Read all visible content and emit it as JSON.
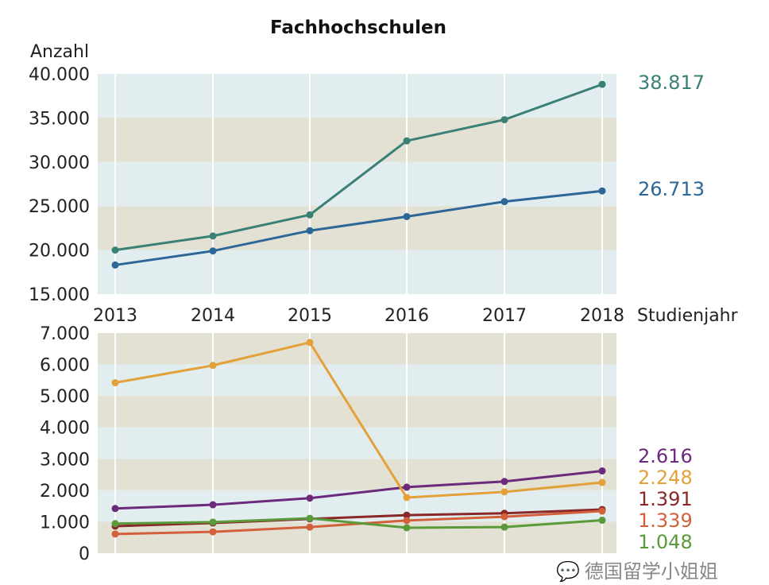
{
  "chart_data": [
    {
      "type": "line",
      "title": "Fachhochschulen",
      "ylabel": "Anzahl",
      "xlabel": "Studienjahr",
      "x": [
        "2013",
        "2014",
        "2015",
        "2016",
        "2017",
        "2018"
      ],
      "ylim": [
        15000,
        40000
      ],
      "yticks": [
        15000,
        20000,
        25000,
        30000,
        35000,
        40000
      ],
      "ytick_labels": [
        "15.000",
        "20.000",
        "25.000",
        "30.000",
        "35.000",
        "40.000"
      ],
      "background": "alternating bands",
      "series": [
        {
          "color": "#3a8074",
          "values": [
            20000,
            21600,
            24000,
            32400,
            34800,
            38817
          ],
          "end_label": "38.817"
        },
        {
          "color": "#2d6798",
          "values": [
            18300,
            19900,
            22200,
            23800,
            25500,
            26713
          ],
          "end_label": "26.713"
        }
      ]
    },
    {
      "type": "line",
      "x": [
        "2013",
        "2014",
        "2015",
        "2016",
        "2017",
        "2018"
      ],
      "ylim": [
        0,
        7000
      ],
      "yticks": [
        0,
        1000,
        2000,
        3000,
        4000,
        5000,
        6000,
        7000
      ],
      "ytick_labels": [
        "0",
        "1.000",
        "2.000",
        "3.000",
        "4.000",
        "5.000",
        "6.000",
        "7.000"
      ],
      "background": "alternating bands",
      "series": [
        {
          "color": "#6b2a7c",
          "values": [
            1420,
            1540,
            1750,
            2100,
            2280,
            2616
          ],
          "end_label": "2.616"
        },
        {
          "color": "#e3a13a",
          "values": [
            5420,
            5970,
            6700,
            1770,
            1950,
            2248
          ],
          "end_label": "2.248"
        },
        {
          "color": "#8a2828",
          "values": [
            860,
            960,
            1090,
            1210,
            1270,
            1391
          ],
          "end_label": "1.391"
        },
        {
          "color": "#d2603a",
          "values": [
            610,
            680,
            830,
            1040,
            1160,
            1339
          ],
          "end_label": "1.339"
        },
        {
          "color": "#5a9a3a",
          "values": [
            940,
            990,
            1110,
            810,
            830,
            1048
          ],
          "end_label": "1.048"
        }
      ]
    }
  ],
  "colors": {
    "band_blue": "#e2edf0",
    "band_beige": "#e3e1d3"
  },
  "watermark": {
    "text": "德国留学小姐姐",
    "icon": "wechat-icon"
  }
}
